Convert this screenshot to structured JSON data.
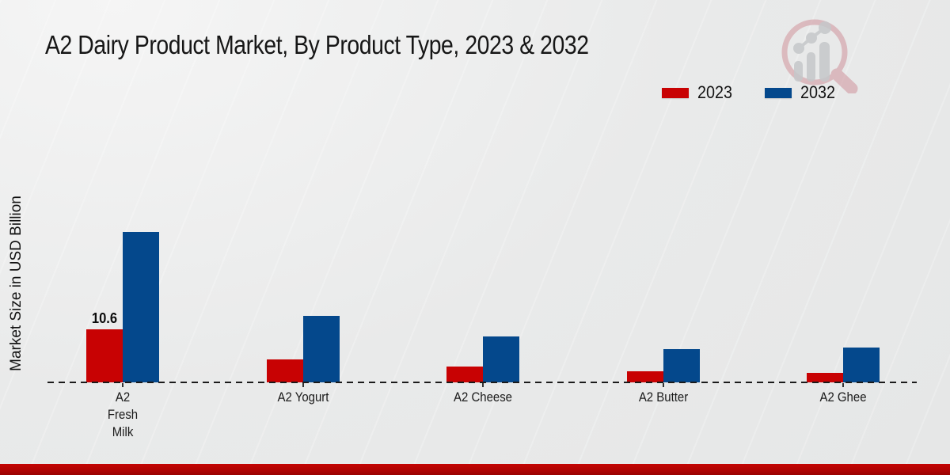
{
  "page": {
    "title": "A2 Dairy Product Market, By Product Type, 2023 & 2032",
    "y_axis_label": "Market Size in USD Billion",
    "watermark_icon": "magnifier-growth-chart-logo",
    "footer_color": "#b00302",
    "background_color": "#e9eaea"
  },
  "legend": [
    {
      "label": "2023",
      "color": "#c80203"
    },
    {
      "label": "2032",
      "color": "#04488c"
    }
  ],
  "chart_data": {
    "type": "bar",
    "title": "A2 Dairy Product Market, By Product Type, 2023 & 2032",
    "xlabel": "",
    "ylabel": "Market Size in USD Billion",
    "categories": [
      "A2\nFresh\nMilk",
      "A2 Yogurt",
      "A2 Cheese",
      "A2 Butter",
      "A2 Ghee"
    ],
    "series": [
      {
        "name": "2023",
        "color": "#c80203",
        "values": [
          10.6,
          4.6,
          3.2,
          2.2,
          1.9
        ],
        "data_labels": [
          "10.6",
          "",
          "",
          "",
          ""
        ]
      },
      {
        "name": "2032",
        "color": "#04488c",
        "values": [
          30.0,
          13.3,
          9.2,
          6.7,
          7.0
        ],
        "data_labels": [
          "",
          "",
          "",
          "",
          ""
        ]
      }
    ],
    "ylim": [
      0,
      31
    ],
    "y_axis_ticks_visible": false,
    "grid": false,
    "legend_position": "top-right",
    "baseline_style": "dashed"
  }
}
